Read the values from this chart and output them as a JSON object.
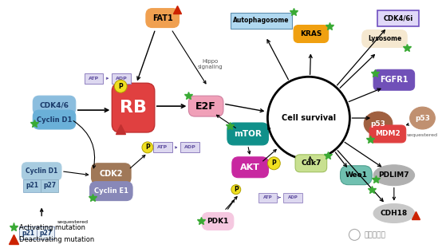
{
  "bg_color": "#ffffff",
  "legend": {
    "activating_label": "Activating mutation",
    "deactivating_label": "Deactivating mutation"
  },
  "watermark": "同源康医药"
}
